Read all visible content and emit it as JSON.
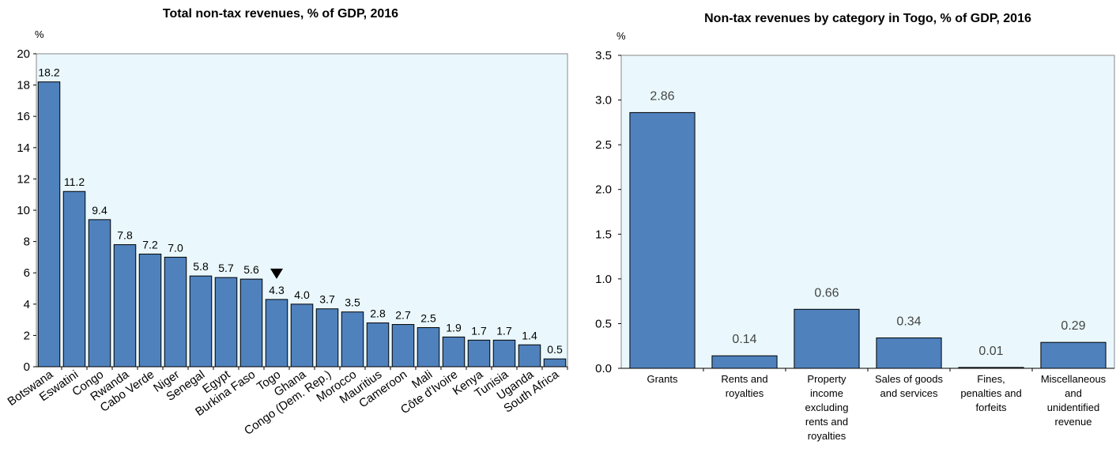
{
  "chart_data": [
    {
      "type": "bar",
      "title": "Total non-tax revenues, % of GDP, 2016",
      "unit_label": "%",
      "categories": [
        "Botswana",
        "Eswatini",
        "Congo",
        "Rwanda",
        "Cabo Verde",
        "Niger",
        "Senegal",
        "Egypt",
        "Burkina Faso",
        "Togo",
        "Ghana",
        "Congo (Dem. Rep.)",
        "Morocco",
        "Mauritius",
        "Cameroon",
        "Mali",
        "Côte d'Ivoire",
        "Kenya",
        "Tunisia",
        "Uganda",
        "South Africa"
      ],
      "values": [
        18.2,
        11.2,
        9.4,
        7.8,
        7.2,
        7.0,
        5.8,
        5.7,
        5.6,
        4.3,
        4.0,
        3.7,
        3.5,
        2.8,
        2.7,
        2.5,
        1.9,
        1.7,
        1.7,
        1.4,
        0.5
      ],
      "value_labels": [
        "18.2",
        "11.2",
        "9.4",
        "7.8",
        "7.2",
        "7.0",
        "5.8",
        "5.7",
        "5.6",
        "4.3",
        "4.0",
        "3.7",
        "3.5",
        "2.8",
        "2.7",
        "2.5",
        "1.9",
        "1.7",
        "1.7",
        "1.4",
        "0.5"
      ],
      "highlight_category": "Togo",
      "ylim": [
        0,
        20
      ],
      "yticks": [
        "0",
        "2",
        "4",
        "6",
        "8",
        "10",
        "12",
        "14",
        "16",
        "18",
        "20"
      ],
      "bar_color": "#4f81bd",
      "plot_background": "#eaf8fd"
    },
    {
      "type": "bar",
      "title": "Non-tax revenues by category in Togo, % of GDP, 2016",
      "unit_label": "%",
      "categories": [
        [
          "Grants"
        ],
        [
          "Rents and",
          "royalties"
        ],
        [
          "Property",
          "income",
          "excluding",
          "rents and",
          "royalties"
        ],
        [
          "Sales of goods",
          "and services"
        ],
        [
          "Fines,",
          "penalties and",
          "forfeits"
        ],
        [
          "Miscellaneous",
          "and",
          "unidentified",
          "revenue"
        ]
      ],
      "values": [
        2.86,
        0.14,
        0.66,
        0.34,
        0.01,
        0.29
      ],
      "value_labels": [
        "2.86",
        "0.14",
        "0.66",
        "0.34",
        "0.01",
        "0.29"
      ],
      "ylim": [
        0,
        3.5
      ],
      "yticks": [
        "0.0",
        "0.5",
        "1.0",
        "1.5",
        "2.0",
        "2.5",
        "3.0",
        "3.5"
      ],
      "bar_color": "#4f81bd",
      "plot_background": "#eaf8fd"
    }
  ]
}
